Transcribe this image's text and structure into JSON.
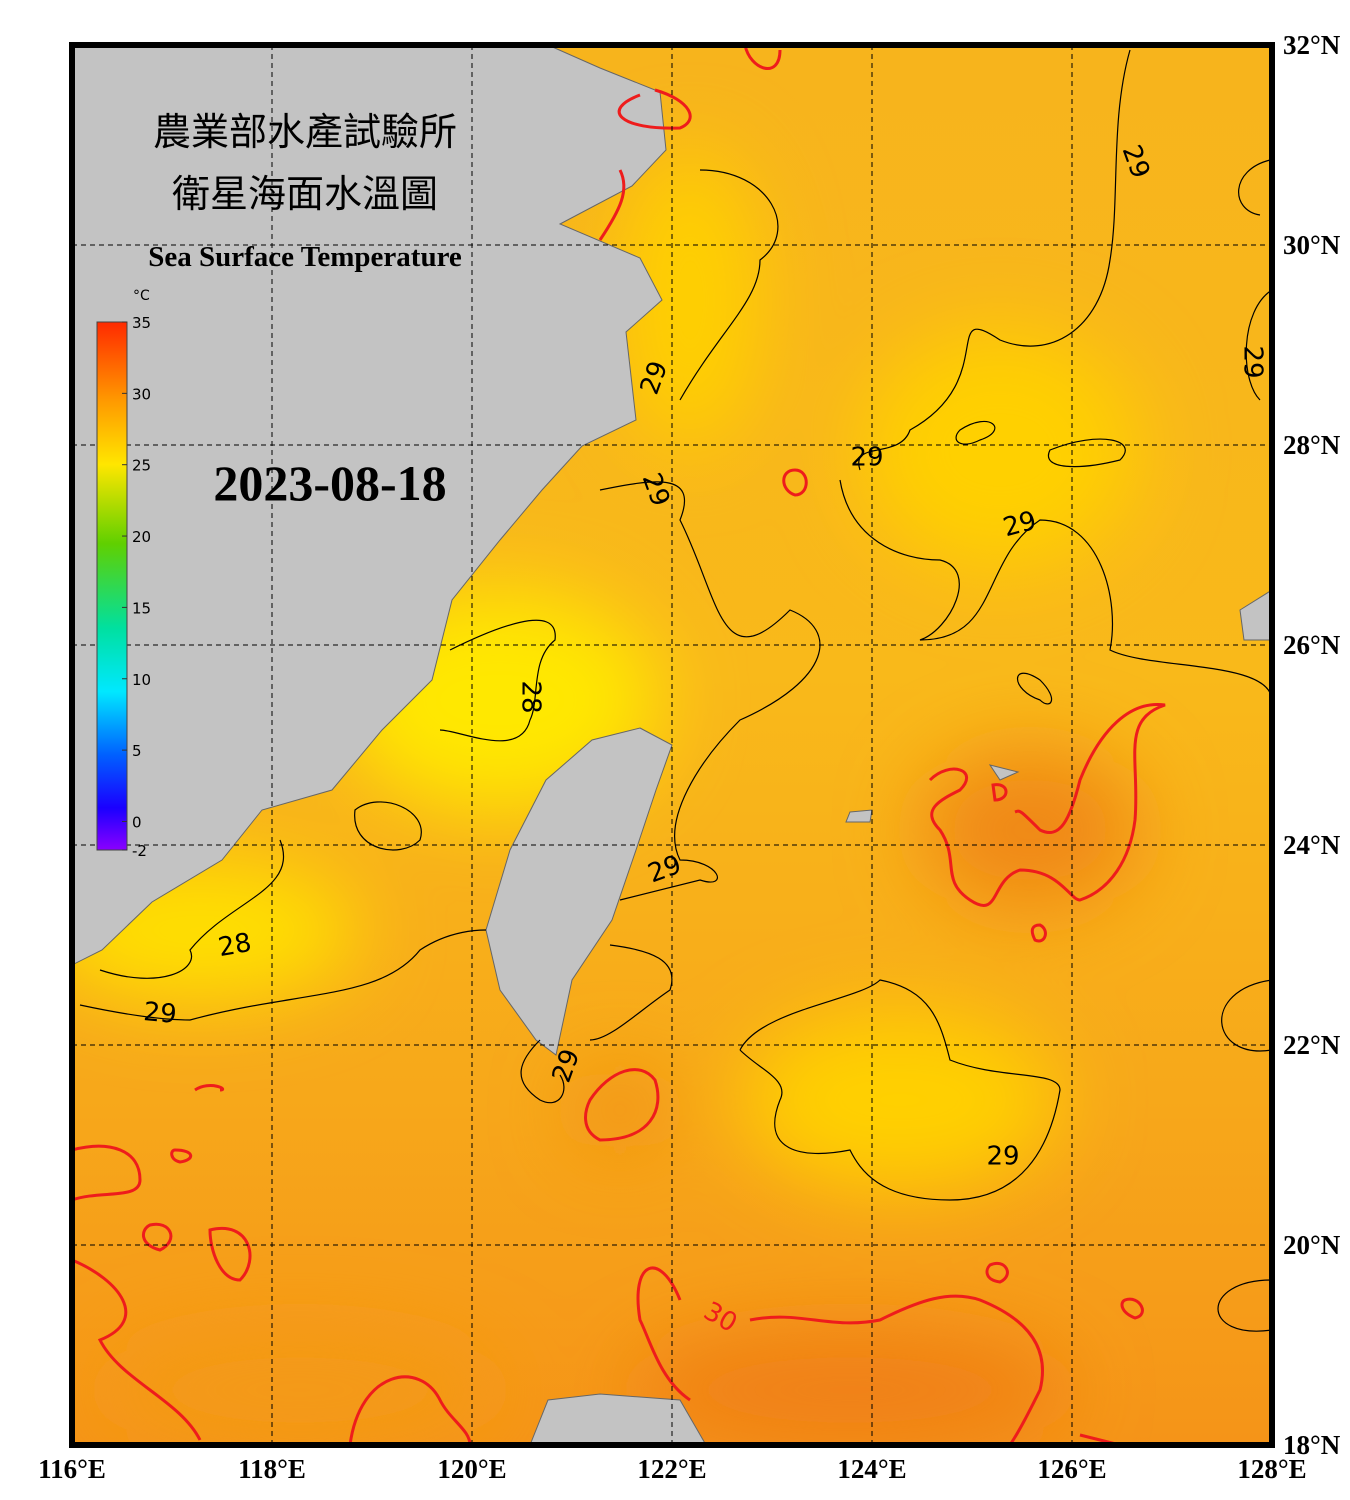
{
  "header": {
    "title_zh_1": "農業部水產試驗所",
    "title_zh_2": "衛星海面水溫圖",
    "title_en": "Sea Surface Temperature",
    "date": "2023-08-18"
  },
  "colorbar": {
    "unit": "°C",
    "range": [
      -2,
      35
    ],
    "ticks": [
      35,
      30,
      25,
      20,
      15,
      10,
      5,
      0,
      -2
    ]
  },
  "map": {
    "lon_range": [
      116,
      128
    ],
    "lat_range": [
      18,
      32
    ],
    "lon_ticks": [
      {
        "value": 116,
        "label": "116°E"
      },
      {
        "value": 118,
        "label": "118°E"
      },
      {
        "value": 120,
        "label": "120°E"
      },
      {
        "value": 122,
        "label": "122°E"
      },
      {
        "value": 124,
        "label": "124°E"
      },
      {
        "value": 126,
        "label": "126°E"
      },
      {
        "value": 128,
        "label": "128°E"
      }
    ],
    "lat_ticks": [
      {
        "value": 32,
        "label": "32°N"
      },
      {
        "value": 30,
        "label": "30°N"
      },
      {
        "value": 28,
        "label": "28°N"
      },
      {
        "value": 26,
        "label": "26°N"
      },
      {
        "value": 24,
        "label": "24°N"
      },
      {
        "value": 22,
        "label": "22°N"
      },
      {
        "value": 20,
        "label": "20°N"
      },
      {
        "value": 18,
        "label": "18°N"
      }
    ],
    "contour_labels": [
      29,
      29,
      29,
      29,
      29,
      29,
      28,
      29,
      28,
      29,
      29,
      29,
      30
    ]
  }
}
